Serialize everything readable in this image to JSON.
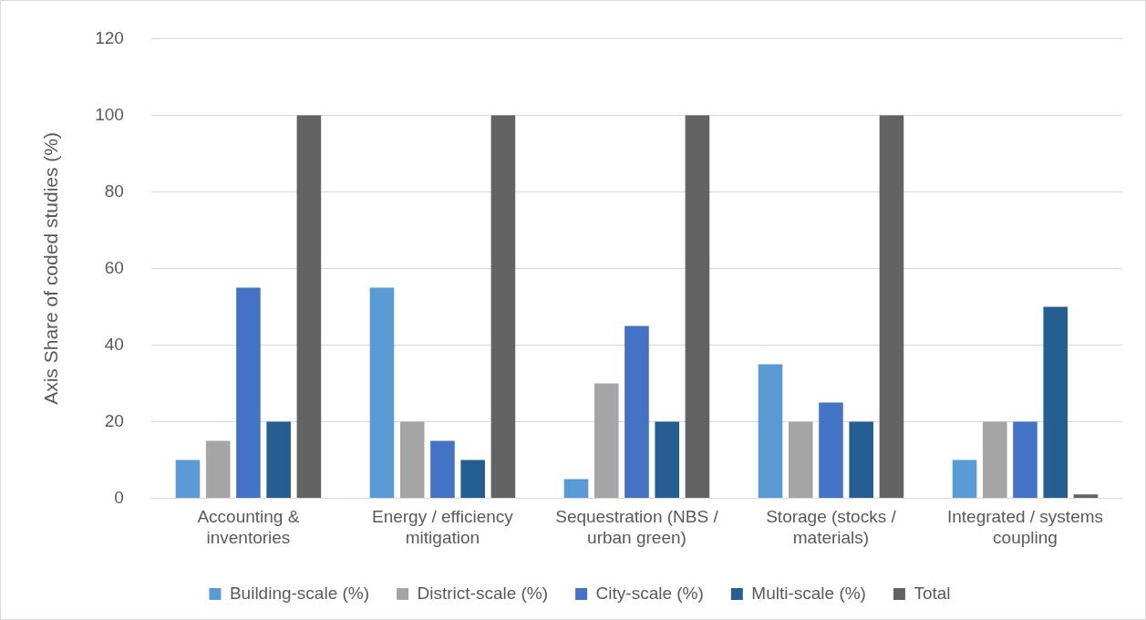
{
  "chart_data": {
    "type": "bar",
    "ylabel": "Axis Share of coded studies (%)",
    "categories": [
      "Accounting & inventories",
      "Energy / efficiency mitigation",
      "Sequestration (NBS / urban green)",
      "Storage (stocks / materials)",
      "Integrated / systems coupling"
    ],
    "series": [
      {
        "name": "Building-scale (%)",
        "color": "#5b9bd5",
        "values": [
          10,
          55,
          5,
          35,
          10
        ]
      },
      {
        "name": "District-scale (%)",
        "color": "#a5a5a5",
        "values": [
          15,
          20,
          30,
          20,
          20
        ]
      },
      {
        "name": "City-scale (%)",
        "color": "#4472c4",
        "values": [
          55,
          15,
          45,
          25,
          20
        ]
      },
      {
        "name": "Multi-scale (%)",
        "color": "#255e91",
        "values": [
          20,
          10,
          20,
          20,
          50
        ]
      },
      {
        "name": "Total",
        "color": "#636363",
        "values": [
          100,
          100,
          100,
          100,
          1
        ]
      }
    ],
    "ylim": [
      0,
      120
    ],
    "yticks": [
      0,
      20,
      40,
      60,
      80,
      100,
      120
    ],
    "grid": "y",
    "legend": "bottom"
  }
}
